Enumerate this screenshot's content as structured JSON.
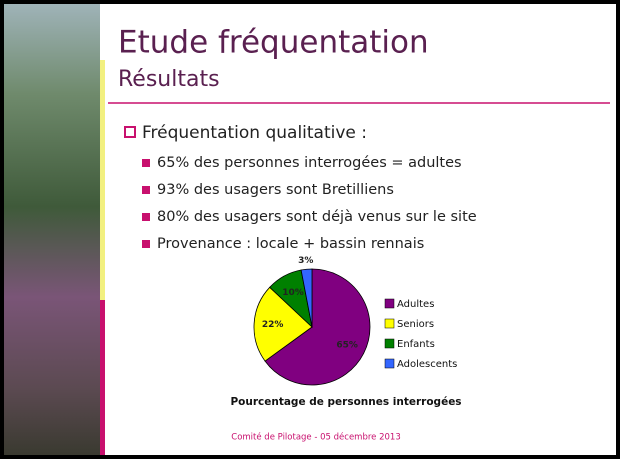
{
  "slide": {
    "title": "Etude fréquentation",
    "subtitle": "Résultats",
    "bullet": "Fréquentation qualitative :",
    "sub_bullets": [
      "65% des personnes interrogées = adultes",
      "93% des usagers sont Bretilliens",
      "80% des usagers sont déjà venus sur le site",
      "Provenance : locale + bassin rennais"
    ],
    "footer": "Comité de Pilotage - 05 décembre 2013"
  },
  "chart_data": {
    "type": "pie",
    "title": "Pourcentage de personnes interrogées",
    "categories": [
      "Adultes",
      "Seniors",
      "Enfants",
      "Adolescents"
    ],
    "values": [
      65,
      22,
      10,
      3
    ],
    "value_labels": [
      "65%",
      "22%",
      "10%",
      "3%"
    ],
    "colors": [
      "#800080",
      "#ffff00",
      "#008000",
      "#3366ff"
    ]
  }
}
